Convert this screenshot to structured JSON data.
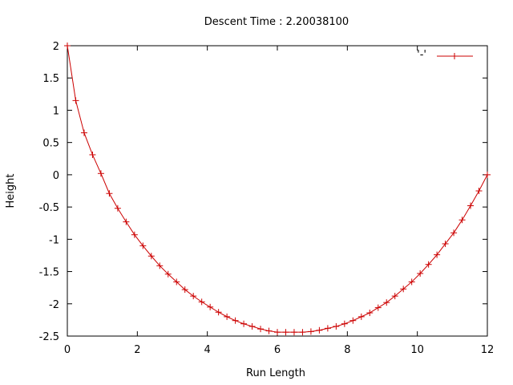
{
  "chart_data": {
    "type": "line",
    "title": "Descent Time : 2.20038100",
    "xlabel": "Run Length",
    "ylabel": "Height",
    "xlim": [
      0,
      12
    ],
    "ylim": [
      -2.5,
      2
    ],
    "xticks": [
      0,
      2,
      4,
      6,
      8,
      10,
      12
    ],
    "yticks": [
      -2.5,
      -2,
      -1.5,
      -1,
      -0.5,
      0,
      0.5,
      1,
      1.5,
      2
    ],
    "grid": false,
    "legend_position": "top-right",
    "series": [
      {
        "name": "'-'",
        "color": "#cc0000",
        "marker": "plus",
        "x": [
          0,
          0.24,
          0.48,
          0.72,
          0.96,
          1.2,
          1.44,
          1.68,
          1.92,
          2.16,
          2.4,
          2.64,
          2.88,
          3.12,
          3.36,
          3.6,
          3.84,
          4.08,
          4.32,
          4.56,
          4.8,
          5.04,
          5.28,
          5.52,
          5.76,
          6.0,
          6.24,
          6.48,
          6.72,
          6.96,
          7.2,
          7.44,
          7.68,
          7.92,
          8.16,
          8.4,
          8.64,
          8.88,
          9.12,
          9.36,
          9.6,
          9.84,
          10.08,
          10.32,
          10.56,
          10.8,
          11.04,
          11.28,
          11.52,
          11.76,
          12.0
        ],
        "y": [
          2.0,
          1.15,
          0.65,
          0.31,
          0.02,
          -0.29,
          -0.52,
          -0.73,
          -0.93,
          -1.1,
          -1.26,
          -1.41,
          -1.54,
          -1.66,
          -1.78,
          -1.88,
          -1.97,
          -2.05,
          -2.13,
          -2.2,
          -2.26,
          -2.31,
          -2.35,
          -2.39,
          -2.42,
          -2.44,
          -2.44,
          -2.44,
          -2.44,
          -2.43,
          -2.41,
          -2.38,
          -2.35,
          -2.31,
          -2.26,
          -2.2,
          -2.14,
          -2.06,
          -1.98,
          -1.88,
          -1.77,
          -1.66,
          -1.53,
          -1.39,
          -1.24,
          -1.07,
          -0.9,
          -0.7,
          -0.48,
          -0.25,
          0.0
        ]
      }
    ]
  }
}
